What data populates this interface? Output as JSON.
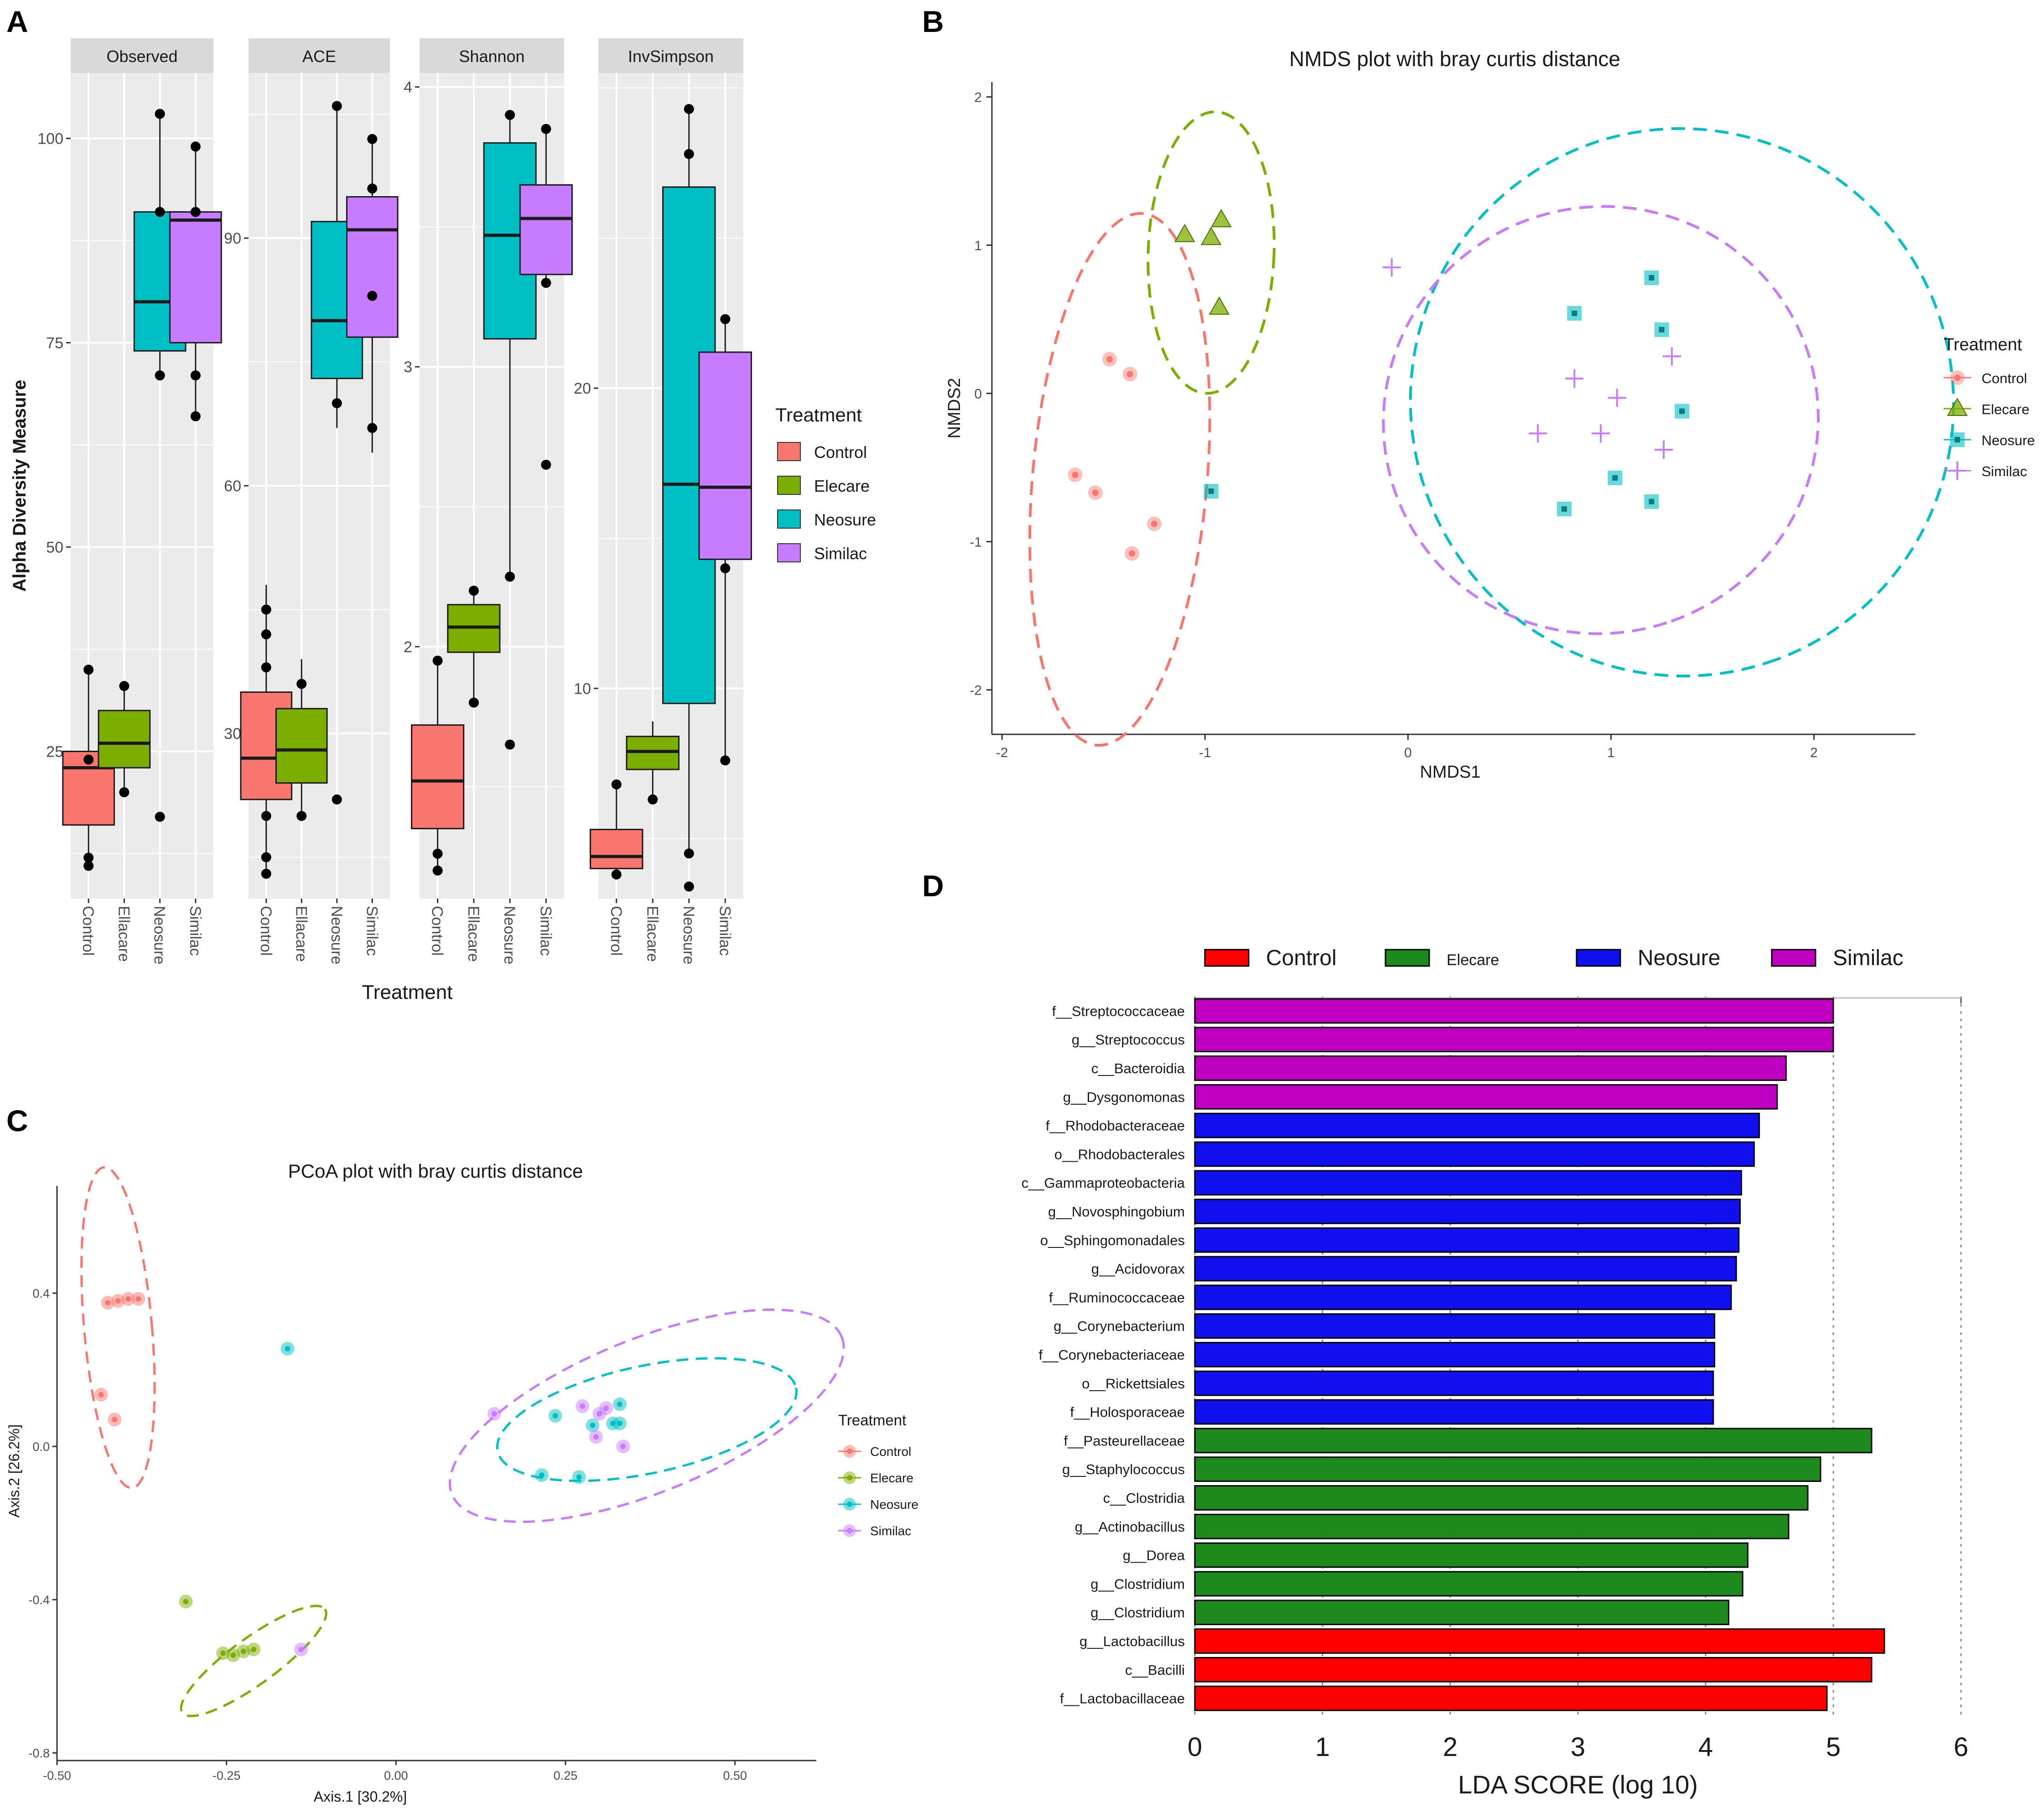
{
  "colors": {
    "Control": "#F8766D",
    "Elecare": "#7CAE00",
    "Neosure": "#00BFC4",
    "Similac": "#C77CFF",
    "lda_control": "#FF0000",
    "lda_elecare": "#1E8A1E",
    "lda_neosure": "#1010EE",
    "lda_similac": "#C000C0",
    "panel_bg": "#EBEBEB",
    "strip_bg": "#D9D9D9"
  },
  "panel_labels": [
    "A",
    "B",
    "C",
    "D"
  ],
  "chart_data": [
    {
      "id": "A",
      "type": "boxplot",
      "ylabel": "Alpha Diversity Measure",
      "xlabel": "Treatment",
      "categories": [
        "Control",
        "Ellacare",
        "Neosure",
        "Similac"
      ],
      "legend": {
        "title": "Treatment",
        "entries": [
          "Control",
          "Elecare",
          "Neosure",
          "Similac"
        ]
      },
      "facets": [
        {
          "name": "Observed",
          "ylim": [
            7,
            108
          ],
          "ticks": [
            25,
            50,
            75,
            100
          ],
          "boxes": [
            {
              "group": "Control",
              "q1": 16,
              "median": 23,
              "q3": 25,
              "whisker_low": 11,
              "whisker_high": 35,
              "points": [
                11,
                12,
                24,
                35
              ]
            },
            {
              "group": "Elecare",
              "q1": 23,
              "median": 26,
              "q3": 30,
              "whisker_low": 20,
              "whisker_high": 33,
              "points": [
                20,
                33
              ]
            },
            {
              "group": "Neosure",
              "q1": 74,
              "median": 80,
              "q3": 91,
              "whisker_low": 71,
              "whisker_high": 103,
              "points": [
                17,
                71,
                91,
                103
              ]
            },
            {
              "group": "Similac",
              "q1": 75,
              "median": 90,
              "q3": 91,
              "whisker_low": 66,
              "whisker_high": 99,
              "points": [
                66,
                71,
                91,
                99
              ]
            }
          ]
        },
        {
          "name": "ACE",
          "ylim": [
            10,
            110
          ],
          "ticks": [
            30,
            60,
            90
          ],
          "boxes": [
            {
              "group": "Control",
              "q1": 22,
              "median": 27,
              "q3": 35,
              "whisker_low": 13,
              "whisker_high": 48,
              "points": [
                13,
                15,
                20,
                38,
                42,
                45
              ]
            },
            {
              "group": "Elecare",
              "q1": 24,
              "median": 28,
              "q3": 33,
              "whisker_low": 20,
              "whisker_high": 39,
              "points": [
                20,
                36
              ]
            },
            {
              "group": "Neosure",
              "q1": 73,
              "median": 80,
              "q3": 92,
              "whisker_low": 67,
              "whisker_high": 106,
              "points": [
                22,
                70,
                106
              ]
            },
            {
              "group": "Similac",
              "q1": 78,
              "median": 91,
              "q3": 95,
              "whisker_low": 64,
              "whisker_high": 102,
              "points": [
                67,
                83,
                96,
                102
              ]
            }
          ]
        },
        {
          "name": "Shannon",
          "ylim": [
            1.1,
            4.05
          ],
          "ticks": [
            2,
            3,
            4
          ],
          "boxes": [
            {
              "group": "Control",
              "q1": 1.35,
              "median": 1.52,
              "q3": 1.72,
              "whisker_low": 1.2,
              "whisker_high": 1.95,
              "points": [
                1.2,
                1.26,
                1.95
              ]
            },
            {
              "group": "Elecare",
              "q1": 1.98,
              "median": 2.07,
              "q3": 2.15,
              "whisker_low": 1.8,
              "whisker_high": 2.2,
              "points": [
                1.8,
                2.2
              ]
            },
            {
              "group": "Neosure",
              "q1": 3.1,
              "median": 3.47,
              "q3": 3.8,
              "whisker_low": 2.25,
              "whisker_high": 3.9,
              "points": [
                1.65,
                2.25,
                3.9
              ]
            },
            {
              "group": "Similac",
              "q1": 3.33,
              "median": 3.53,
              "q3": 3.65,
              "whisker_low": 3.3,
              "whisker_high": 3.85,
              "points": [
                2.65,
                3.3,
                3.85
              ]
            }
          ]
        },
        {
          "name": "InvSimpson",
          "ylim": [
            3,
            30.5
          ],
          "ticks": [
            10,
            20
          ],
          "boxes": [
            {
              "group": "Control",
              "q1": 4.0,
              "median": 4.4,
              "q3": 5.3,
              "whisker_low": 3.8,
              "whisker_high": 6.8,
              "points": [
                3.8,
                6.8
              ]
            },
            {
              "group": "Elecare",
              "q1": 7.3,
              "median": 7.9,
              "q3": 8.4,
              "whisker_low": 6.3,
              "whisker_high": 8.9,
              "points": [
                6.3
              ]
            },
            {
              "group": "Neosure",
              "q1": 9.5,
              "median": 16.8,
              "q3": 26.7,
              "whisker_low": 4.5,
              "whisker_high": 29.3,
              "points": [
                3.4,
                4.5,
                27.8,
                29.3
              ]
            },
            {
              "group": "Similac",
              "q1": 14.3,
              "median": 16.7,
              "q3": 21.2,
              "whisker_low": 7.6,
              "whisker_high": 22.3,
              "points": [
                7.6,
                14.0,
                22.3
              ]
            }
          ]
        }
      ]
    },
    {
      "id": "B",
      "type": "scatter",
      "title": "NMDS plot with bray curtis distance",
      "xlabel": "NMDS1",
      "ylabel": "NMDS2",
      "xlim": [
        -2.05,
        2.5
      ],
      "ylim": [
        -2.3,
        2.1
      ],
      "xticks": [
        -2,
        -1,
        0,
        1,
        2
      ],
      "yticks": [
        -2,
        -1,
        0,
        1,
        2
      ],
      "legend": {
        "title": "Treatment",
        "entries": [
          "Control",
          "Elecare",
          "Neosure",
          "Similac"
        ]
      },
      "series": [
        {
          "name": "Control",
          "marker": "circle",
          "points": [
            [
              -1.47,
              0.23
            ],
            [
              -1.37,
              0.13
            ],
            [
              -1.64,
              -0.55
            ],
            [
              -1.54,
              -0.67
            ],
            [
              -1.25,
              -0.88
            ],
            [
              -1.36,
              -1.08
            ]
          ]
        },
        {
          "name": "Elecare",
          "marker": "triangle",
          "points": [
            [
              -1.1,
              1.07
            ],
            [
              -0.97,
              1.05
            ],
            [
              -0.92,
              1.17
            ],
            [
              -0.93,
              0.58
            ]
          ]
        },
        {
          "name": "Neosure",
          "marker": "square",
          "points": [
            [
              -0.97,
              -0.66
            ],
            [
              0.82,
              0.54
            ],
            [
              1.2,
              0.78
            ],
            [
              1.25,
              0.43
            ],
            [
              1.35,
              -0.12
            ],
            [
              1.02,
              -0.57
            ],
            [
              1.2,
              -0.73
            ],
            [
              0.77,
              -0.78
            ]
          ]
        },
        {
          "name": "Similac",
          "marker": "plus",
          "points": [
            [
              -0.08,
              0.85
            ],
            [
              0.82,
              0.1
            ],
            [
              1.03,
              -0.03
            ],
            [
              0.64,
              -0.27
            ],
            [
              0.95,
              -0.27
            ],
            [
              1.26,
              -0.38
            ],
            [
              1.3,
              0.25
            ]
          ]
        }
      ],
      "ellipses": [
        {
          "name": "Control",
          "cx": -1.42,
          "cy": -0.58,
          "rx": 0.43,
          "ry": 1.8,
          "rot": 5
        },
        {
          "name": "Elecare",
          "cx": -0.97,
          "cy": 0.95,
          "rx": 0.31,
          "ry": 0.95,
          "rot": 2
        },
        {
          "name": "Neosure",
          "cx": 1.35,
          "cy": -0.06,
          "rx": 1.35,
          "ry": 1.83,
          "rot": 70
        },
        {
          "name": "Similac",
          "cx": 0.95,
          "cy": -0.18,
          "rx": 1.05,
          "ry": 1.47,
          "rot": 72
        }
      ]
    },
    {
      "id": "C",
      "type": "scatter",
      "title": "PCoA plot with bray curtis distance",
      "xlabel": "Axis.1   [30.2%]",
      "ylabel": "Axis.2   [26.2%]",
      "xlim": [
        -0.5,
        0.62
      ],
      "ylim": [
        -0.82,
        0.68
      ],
      "xticks": [
        -0.5,
        -0.25,
        0.0,
        0.25,
        0.5
      ],
      "xtick_labels": [
        "-0.50",
        "-0.25",
        "0.00",
        "0.25",
        "0.50"
      ],
      "yticks": [
        -0.8,
        -0.4,
        0.0,
        0.4
      ],
      "ytick_labels": [
        "-0.8",
        "-0.4",
        "0.0",
        "0.4"
      ],
      "legend": {
        "title": "Treatment",
        "entries": [
          "Control",
          "Elecare",
          "Neosure",
          "Similac"
        ]
      },
      "series": [
        {
          "name": "Control",
          "points": [
            [
              -0.425,
              0.375
            ],
            [
              -0.41,
              0.38
            ],
            [
              -0.395,
              0.385
            ],
            [
              -0.38,
              0.385
            ],
            [
              -0.435,
              0.135
            ],
            [
              -0.415,
              0.07
            ]
          ]
        },
        {
          "name": "Elecare",
          "points": [
            [
              -0.31,
              -0.405
            ],
            [
              -0.255,
              -0.54
            ],
            [
              -0.24,
              -0.545
            ],
            [
              -0.225,
              -0.535
            ],
            [
              -0.21,
              -0.53
            ]
          ]
        },
        {
          "name": "Neosure",
          "points": [
            [
              -0.16,
              0.255
            ],
            [
              0.235,
              0.08
            ],
            [
              0.29,
              0.055
            ],
            [
              0.32,
              0.06
            ],
            [
              0.33,
              0.11
            ],
            [
              0.33,
              0.06
            ],
            [
              0.215,
              -0.075
            ],
            [
              0.27,
              -0.08
            ]
          ]
        },
        {
          "name": "Similac",
          "points": [
            [
              0.145,
              0.085
            ],
            [
              0.275,
              0.105
            ],
            [
              0.3,
              0.085
            ],
            [
              0.31,
              0.1
            ],
            [
              0.295,
              0.025
            ],
            [
              0.335,
              0.0
            ],
            [
              -0.14,
              -0.53
            ]
          ]
        }
      ],
      "ellipses": [
        {
          "name": "Control",
          "cx": -0.41,
          "cy": 0.31,
          "rx": 0.05,
          "ry": 0.42,
          "rot": 5
        },
        {
          "name": "Elecare",
          "cx": -0.21,
          "cy": -0.56,
          "rx": 0.13,
          "ry": 0.06,
          "rot": 36
        },
        {
          "name": "Neosure",
          "cx": 0.37,
          "cy": 0.07,
          "rx": 0.225,
          "ry": 0.14,
          "rot": 12
        },
        {
          "name": "Similac",
          "cx": 0.37,
          "cy": 0.08,
          "rx": 0.31,
          "ry": 0.2,
          "rot": 22
        }
      ]
    },
    {
      "id": "D",
      "type": "bar",
      "orientation": "horizontal",
      "xlabel": "LDA SCORE (log 10)",
      "xlim": [
        0,
        6
      ],
      "xticks": [
        0,
        1,
        2,
        3,
        4,
        5,
        6
      ],
      "legend": {
        "entries": [
          "Control",
          "Elecare",
          "Neosure",
          "Similac"
        ]
      },
      "categories": [
        "f__Streptococcaceae",
        "g__Streptococcus",
        "c__Bacteroidia",
        "g__Dysgonomonas",
        "f__Rhodobacteraceae",
        "o__Rhodobacterales",
        "c__Gammaproteobacteria",
        "g__Novosphingobium",
        "o__Sphingomonadales",
        "g__Acidovorax",
        "f__Ruminococcaceae",
        "g__Corynebacterium",
        "f__Corynebacteriaceae",
        "o__Rickettsiales",
        "f__Holosporaceae",
        "f__Pasteurellaceae",
        "g__Staphylococcus",
        "c__Clostridia",
        "g__Actinobacillus",
        "g__Dorea",
        "g__Clostridium",
        "g__Clostridium",
        "g__Lactobacillus",
        "c__Bacilli",
        "f__Lactobacillaceae"
      ],
      "values": [
        5.0,
        5.0,
        4.63,
        4.56,
        4.42,
        4.38,
        4.28,
        4.27,
        4.26,
        4.24,
        4.2,
        4.07,
        4.07,
        4.06,
        4.06,
        5.3,
        4.9,
        4.8,
        4.65,
        4.33,
        4.29,
        4.18,
        5.4,
        5.3,
        4.95
      ],
      "groups": [
        "Similac",
        "Similac",
        "Similac",
        "Similac",
        "Neosure",
        "Neosure",
        "Neosure",
        "Neosure",
        "Neosure",
        "Neosure",
        "Neosure",
        "Neosure",
        "Neosure",
        "Neosure",
        "Neosure",
        "Elecare",
        "Elecare",
        "Elecare",
        "Elecare",
        "Elecare",
        "Elecare",
        "Elecare",
        "Control",
        "Control",
        "Control"
      ]
    }
  ]
}
